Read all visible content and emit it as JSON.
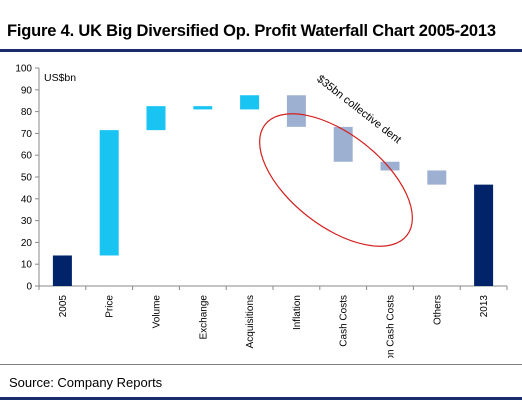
{
  "figure_title": "Figure 4. UK Big Diversified Op. Profit Waterfall Chart 2005-2013",
  "source": "Source: Company Reports",
  "annotation": "$35bn collective dent",
  "colors": {
    "total": "#002369",
    "positive": "#19C3F2",
    "negative": "#9EB0D2",
    "annotation_ellipse": "#D42020",
    "rule": "#1A2C6B"
  },
  "chart_data": {
    "type": "bar",
    "subtype": "waterfall",
    "title": "",
    "xlabel": "",
    "ylabel": "US$bn",
    "ylim": [
      0,
      100
    ],
    "yticks": [
      0,
      10,
      20,
      30,
      40,
      50,
      60,
      70,
      80,
      90,
      100
    ],
    "grid": false,
    "legend": "none",
    "categories": [
      "2005",
      "Price",
      "Volume",
      "Exchange",
      "Acquisitions",
      "Inflation",
      "Cash Costs",
      "Non Cash Costs",
      "Others",
      "2013"
    ],
    "bars": [
      {
        "category": "2005",
        "kind": "total",
        "start": 0,
        "end": 14
      },
      {
        "category": "Price",
        "kind": "increase",
        "start": 14,
        "end": 71.5
      },
      {
        "category": "Volume",
        "kind": "increase",
        "start": 71.5,
        "end": 82.5
      },
      {
        "category": "Exchange",
        "kind": "increase",
        "start": 81,
        "end": 82.5
      },
      {
        "category": "Acquisitions",
        "kind": "increase",
        "start": 81,
        "end": 87.5
      },
      {
        "category": "Inflation",
        "kind": "decrease",
        "start": 87.5,
        "end": 73
      },
      {
        "category": "Cash Costs",
        "kind": "decrease",
        "start": 73,
        "end": 57
      },
      {
        "category": "Non Cash Costs",
        "kind": "decrease",
        "start": 57,
        "end": 53
      },
      {
        "category": "Others",
        "kind": "decrease",
        "start": 53,
        "end": 46.5
      },
      {
        "category": "2013",
        "kind": "total",
        "start": 0,
        "end": 46.5
      }
    ]
  }
}
